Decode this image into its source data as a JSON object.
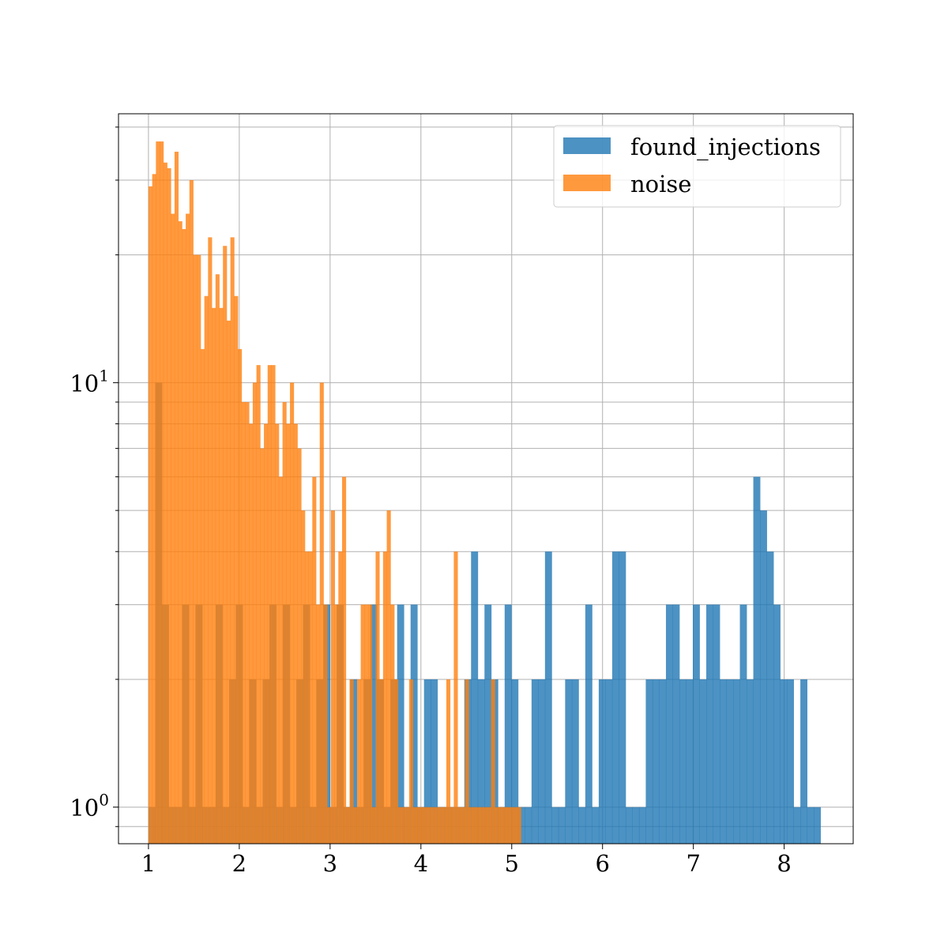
{
  "chart_data": {
    "type": "histogram",
    "title": "",
    "xlabel": "",
    "ylabel": "",
    "xlim": [
      0.67,
      8.76
    ],
    "ylim": [
      0.82,
      43
    ],
    "yscale": "log",
    "grid": true,
    "legend": {
      "placement": "top-right"
    },
    "x_ticks": [
      {
        "value": 1,
        "label": "1"
      },
      {
        "value": 2,
        "label": "2"
      },
      {
        "value": 3,
        "label": "3"
      },
      {
        "value": 4,
        "label": "4"
      },
      {
        "value": 5,
        "label": "5"
      },
      {
        "value": 6,
        "label": "6"
      },
      {
        "value": 7,
        "label": "7"
      },
      {
        "value": 8,
        "label": "8"
      }
    ],
    "y_ticks": [
      {
        "value": 1,
        "base": "10",
        "exp": "0"
      },
      {
        "value": 10,
        "base": "10",
        "exp": "1"
      }
    ],
    "series": [
      {
        "name": "found_injections",
        "color": "#1f77b4",
        "bin_range": [
          1.0,
          8.4
        ],
        "bin_count": 100,
        "counts": [
          1,
          10,
          3,
          1,
          1,
          3,
          1,
          3,
          1,
          1,
          3,
          1,
          2,
          3,
          1,
          2,
          1,
          2,
          3,
          1,
          3,
          1,
          2,
          3,
          1,
          2,
          3,
          1,
          3,
          1,
          2,
          1,
          2,
          3,
          2,
          1,
          2,
          3,
          1,
          3,
          1,
          2,
          2,
          1,
          1,
          1,
          1,
          2,
          4,
          2,
          3,
          2,
          1,
          3,
          2,
          1,
          1,
          2,
          2,
          4,
          1,
          1,
          2,
          2,
          1,
          3,
          1,
          2,
          2,
          4,
          4,
          1,
          1,
          1,
          2,
          2,
          2,
          3,
          3,
          2,
          2,
          3,
          2,
          3,
          3,
          2,
          2,
          2,
          3,
          2,
          6,
          5,
          4,
          3,
          2,
          2,
          1,
          2,
          1,
          1
        ]
      },
      {
        "name": "noise",
        "color": "#ff7f0e",
        "bin_range": [
          1.0,
          5.1
        ],
        "bin_count": 100,
        "counts": [
          29,
          31,
          37,
          37,
          33,
          32,
          25,
          35,
          24,
          23,
          25,
          30,
          20,
          20,
          12,
          16,
          22,
          15,
          18,
          15,
          21,
          14,
          22,
          16,
          12,
          9,
          9,
          8,
          10,
          11,
          7,
          8,
          11,
          11,
          8,
          6,
          9,
          8,
          10,
          8,
          7,
          5,
          4,
          4,
          6,
          3,
          10,
          3,
          1,
          5,
          3,
          4,
          6,
          1,
          2,
          1,
          2,
          3,
          3,
          3,
          1,
          4,
          2,
          4,
          5,
          3,
          2,
          1,
          1,
          1,
          2,
          1,
          1,
          1,
          1,
          1,
          1,
          1,
          1,
          1,
          2,
          1,
          4,
          1,
          1,
          2,
          1,
          1,
          1,
          1,
          1,
          1,
          2,
          1,
          1,
          1,
          1,
          1,
          1,
          1
        ]
      }
    ]
  }
}
